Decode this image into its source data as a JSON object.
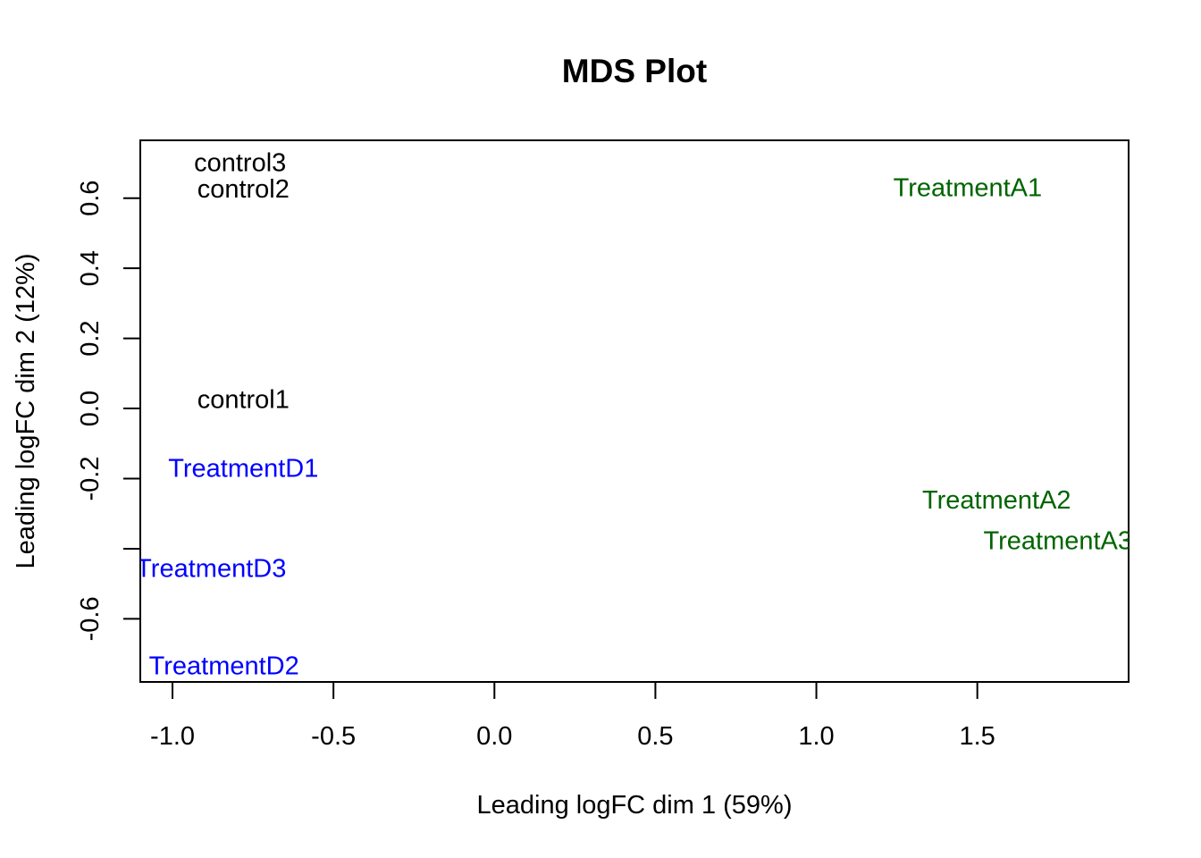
{
  "chart_data": {
    "type": "scatter",
    "title": "MDS Plot",
    "xlabel": "Leading logFC dim 1 (59%)",
    "ylabel": "Leading logFC dim 2 (12%)",
    "xlim": [
      -1.1,
      1.97
    ],
    "ylim": [
      -0.78,
      0.765
    ],
    "x_ticks": [
      -1.0,
      -0.5,
      0.0,
      0.5,
      1.0,
      1.5
    ],
    "x_tick_labels": [
      "-1.0",
      "-0.5",
      "0.0",
      "0.5",
      "1.0",
      "1.5"
    ],
    "y_ticks": [
      -0.6,
      -0.4,
      -0.2,
      0.0,
      0.2,
      0.4,
      0.6
    ],
    "y_tick_labels": [
      "-0.6",
      "",
      "-0.2",
      "0.0",
      "0.2",
      "0.4",
      "0.6"
    ],
    "grid": false,
    "points": [
      {
        "label": "control3",
        "x": -0.79,
        "y": 0.7,
        "color": "#000000"
      },
      {
        "label": "control2",
        "x": -0.78,
        "y": 0.625,
        "color": "#000000"
      },
      {
        "label": "control1",
        "x": -0.78,
        "y": 0.025,
        "color": "#000000"
      },
      {
        "label": "TreatmentD1",
        "x": -0.78,
        "y": -0.172,
        "color": "#0000ff"
      },
      {
        "label": "TreatmentD3",
        "x": -0.88,
        "y": -0.458,
        "color": "#0000ff"
      },
      {
        "label": "TreatmentD2",
        "x": -0.84,
        "y": -0.735,
        "color": "#0000ff"
      },
      {
        "label": "TreatmentA1",
        "x": 1.47,
        "y": 0.628,
        "color": "#006400"
      },
      {
        "label": "TreatmentA2",
        "x": 1.56,
        "y": -0.263,
        "color": "#006400"
      },
      {
        "label": "TreatmentA3",
        "x": 1.75,
        "y": -0.378,
        "color": "#006400"
      }
    ]
  }
}
